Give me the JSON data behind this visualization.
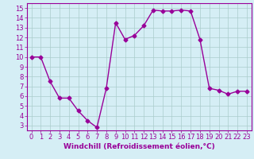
{
  "x": [
    0,
    1,
    2,
    3,
    4,
    5,
    6,
    7,
    8,
    9,
    10,
    11,
    12,
    13,
    14,
    15,
    16,
    17,
    18,
    19,
    20,
    21,
    22,
    23
  ],
  "y": [
    10.0,
    10.0,
    7.5,
    5.8,
    5.8,
    4.5,
    3.5,
    2.8,
    6.8,
    13.5,
    11.8,
    12.2,
    13.2,
    14.8,
    14.7,
    14.7,
    14.8,
    14.7,
    11.8,
    6.8,
    6.6,
    6.2,
    6.5,
    6.5
  ],
  "line_color": "#990099",
  "marker": "D",
  "marker_size": 2.5,
  "linewidth": 1.0,
  "background_color": "#d5eef5",
  "grid_color": "#aacccc",
  "xlabel": "Windchill (Refroidissement éolien,°C)",
  "xlabel_color": "#990099",
  "xlabel_fontsize": 6.5,
  "tick_color": "#990099",
  "tick_fontsize": 6,
  "ylim": [
    2.5,
    15.5
  ],
  "xlim": [
    -0.5,
    23.5
  ],
  "yticks": [
    3,
    4,
    5,
    6,
    7,
    8,
    9,
    10,
    11,
    12,
    13,
    14,
    15
  ],
  "xticks": [
    0,
    1,
    2,
    3,
    4,
    5,
    6,
    7,
    8,
    9,
    10,
    11,
    12,
    13,
    14,
    15,
    16,
    17,
    18,
    19,
    20,
    21,
    22,
    23
  ]
}
